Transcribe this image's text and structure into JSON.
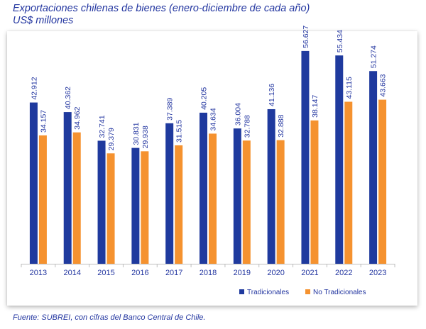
{
  "header": {
    "title": "Exportaciones chilenas de bienes (enero-diciembre de cada año)",
    "subtitle": "US$ millones"
  },
  "footer": {
    "source": "Fuente: SUBREI, con cifras del Banco Central de Chile."
  },
  "colors": {
    "tradicionales": "#1f3a9e",
    "no_tradicionales": "#f5922f",
    "text": "#2336a0"
  },
  "chart_data": {
    "type": "bar",
    "title": "Exportaciones chilenas de bienes (enero-diciembre de cada año)",
    "ylabel": "US$ millones",
    "categories": [
      "2013",
      "2014",
      "2015",
      "2016",
      "2017",
      "2018",
      "2019",
      "2020",
      "2021",
      "2022",
      "2023"
    ],
    "series": [
      {
        "name": "Tradicionales",
        "values": [
          42912,
          40362,
          32741,
          30831,
          37389,
          40205,
          36004,
          41136,
          56627,
          55434,
          51274
        ],
        "labels": [
          "42.912",
          "40.362",
          "32.741",
          "30.831",
          "37.389",
          "40.205",
          "36.004",
          "41.136",
          "56.627",
          "55.434",
          "51.274"
        ]
      },
      {
        "name": "No Tradicionales",
        "values": [
          34157,
          34962,
          29379,
          29938,
          31515,
          34634,
          32788,
          32888,
          38147,
          43115,
          43663
        ],
        "labels": [
          "34.157",
          "34.962",
          "29.379",
          "29.938",
          "31.515",
          "34.634",
          "32.788",
          "32.888",
          "38.147",
          "43.115",
          "43.663"
        ]
      }
    ],
    "ylim": [
      0,
      60000
    ],
    "grid": false,
    "legend": "bottom-right"
  }
}
